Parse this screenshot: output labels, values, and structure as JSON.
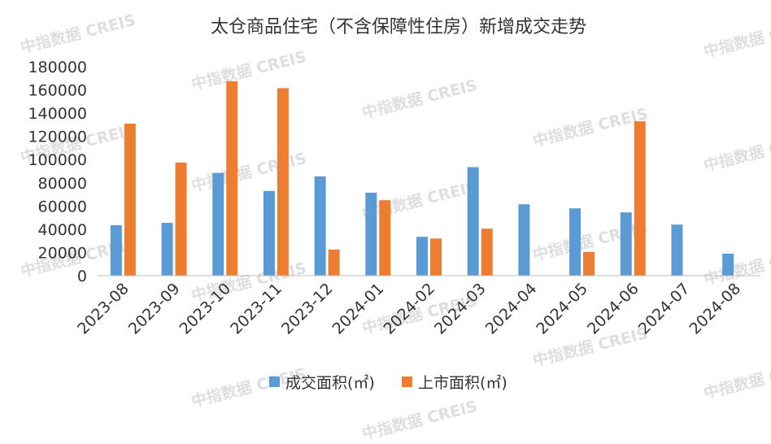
{
  "watermark": "中指数据 CREIS",
  "chart_data": {
    "type": "bar",
    "title": "太仓商品住宅（不含保障性住房）新增成交走势",
    "categories": [
      "2023-08",
      "2023-09",
      "2023-10",
      "2023-11",
      "2023-12",
      "2024-01",
      "2024-02",
      "2024-03",
      "2024-04",
      "2024-05",
      "2024-06",
      "2024-07",
      "2024-08"
    ],
    "series": [
      {
        "name": "成交面积(㎡)",
        "color": "#5B9BD5",
        "values": [
          43500,
          45500,
          88500,
          73000,
          85500,
          71500,
          33500,
          93500,
          61500,
          58000,
          54500,
          44000,
          19000
        ]
      },
      {
        "name": "上市面积(㎡)",
        "color": "#ED7D31",
        "values": [
          131000,
          97500,
          167500,
          161500,
          22500,
          65000,
          32000,
          40500,
          0,
          20500,
          133000,
          0,
          0
        ]
      }
    ],
    "yticks": [
      0,
      20000,
      40000,
      60000,
      80000,
      100000,
      120000,
      140000,
      160000,
      180000
    ],
    "ylim": [
      0,
      180000
    ],
    "legend_position": "bottom",
    "grid": false
  }
}
